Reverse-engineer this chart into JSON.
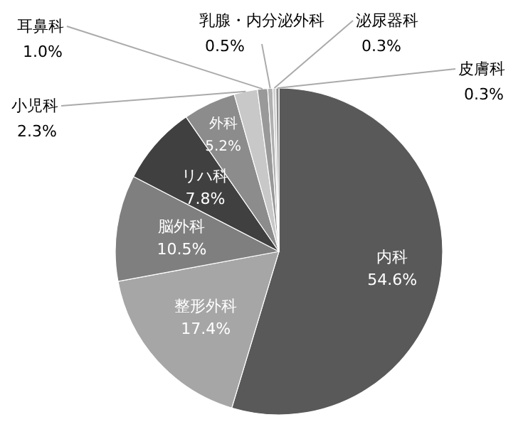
{
  "chart_data": {
    "type": "pie",
    "categories": [
      "内科",
      "整形外科",
      "脳外科",
      "リハ科",
      "外科",
      "小児科",
      "耳鼻科",
      "乳腺・内分泌外科",
      "泌尿器科",
      "皮膚科"
    ],
    "values": [
      54.6,
      17.4,
      10.5,
      7.8,
      5.2,
      2.3,
      1.0,
      0.5,
      0.3,
      0.3
    ],
    "value_labels": [
      "54.6%",
      "17.4%",
      "10.5%",
      "7.8%",
      "5.2%",
      "2.3%",
      "1.0%",
      "0.5%",
      "0.3%",
      "0.3%"
    ],
    "colors": [
      "#595959",
      "#a6a6a6",
      "#7f7f7f",
      "#404040",
      "#8c8c8c",
      "#c8c8c8",
      "#999999",
      "#b0b0b0",
      "#d0d0d0",
      "#909090"
    ]
  }
}
